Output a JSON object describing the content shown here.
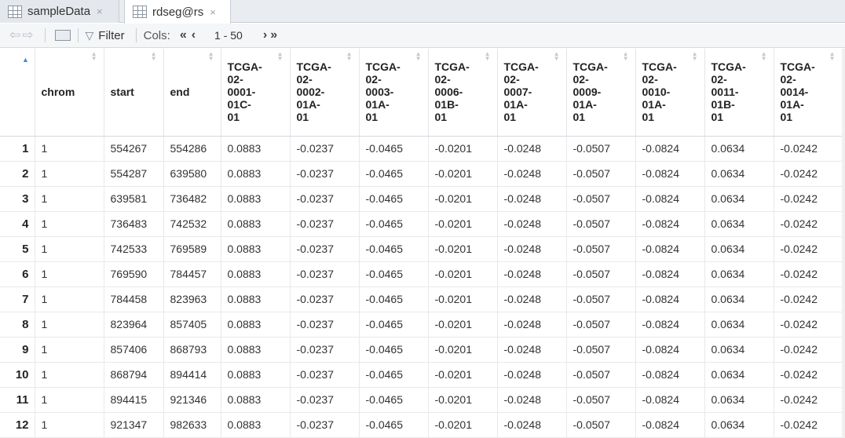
{
  "tabs": [
    {
      "label": "sampleData",
      "close": "×"
    },
    {
      "label": "rdseg@rs",
      "close": "×"
    }
  ],
  "toolbar": {
    "back_icon": "⇦",
    "forward_icon": "⇨",
    "filter_label": "Filter",
    "cols_label": "Cols:",
    "first_btn": "«",
    "prev_btn": "‹",
    "range": "1 - 50",
    "next_btn": "›",
    "last_btn": "»"
  },
  "table": {
    "columns": [
      "",
      "chrom",
      "start",
      "end",
      "TCGA-\n02-\n0001-\n01C-\n01",
      "TCGA-\n02-\n0002-\n01A-\n01",
      "TCGA-\n02-\n0003-\n01A-\n01",
      "TCGA-\n02-\n0006-\n01B-\n01",
      "TCGA-\n02-\n0007-\n01A-\n01",
      "TCGA-\n02-\n0009-\n01A-\n01",
      "TCGA-\n02-\n0010-\n01A-\n01",
      "TCGA-\n02-\n0011-\n01B-\n01",
      "TCGA-\n02-\n0014-\n01A-\n01"
    ],
    "rows": [
      [
        "1",
        "1",
        "554267",
        "554286",
        "0.0883",
        "-0.0237",
        "-0.0465",
        "-0.0201",
        "-0.0248",
        "-0.0507",
        "-0.0824",
        "0.0634",
        "-0.0242"
      ],
      [
        "2",
        "1",
        "554287",
        "639580",
        "0.0883",
        "-0.0237",
        "-0.0465",
        "-0.0201",
        "-0.0248",
        "-0.0507",
        "-0.0824",
        "0.0634",
        "-0.0242"
      ],
      [
        "3",
        "1",
        "639581",
        "736482",
        "0.0883",
        "-0.0237",
        "-0.0465",
        "-0.0201",
        "-0.0248",
        "-0.0507",
        "-0.0824",
        "0.0634",
        "-0.0242"
      ],
      [
        "4",
        "1",
        "736483",
        "742532",
        "0.0883",
        "-0.0237",
        "-0.0465",
        "-0.0201",
        "-0.0248",
        "-0.0507",
        "-0.0824",
        "0.0634",
        "-0.0242"
      ],
      [
        "5",
        "1",
        "742533",
        "769589",
        "0.0883",
        "-0.0237",
        "-0.0465",
        "-0.0201",
        "-0.0248",
        "-0.0507",
        "-0.0824",
        "0.0634",
        "-0.0242"
      ],
      [
        "6",
        "1",
        "769590",
        "784457",
        "0.0883",
        "-0.0237",
        "-0.0465",
        "-0.0201",
        "-0.0248",
        "-0.0507",
        "-0.0824",
        "0.0634",
        "-0.0242"
      ],
      [
        "7",
        "1",
        "784458",
        "823963",
        "0.0883",
        "-0.0237",
        "-0.0465",
        "-0.0201",
        "-0.0248",
        "-0.0507",
        "-0.0824",
        "0.0634",
        "-0.0242"
      ],
      [
        "8",
        "1",
        "823964",
        "857405",
        "0.0883",
        "-0.0237",
        "-0.0465",
        "-0.0201",
        "-0.0248",
        "-0.0507",
        "-0.0824",
        "0.0634",
        "-0.0242"
      ],
      [
        "9",
        "1",
        "857406",
        "868793",
        "0.0883",
        "-0.0237",
        "-0.0465",
        "-0.0201",
        "-0.0248",
        "-0.0507",
        "-0.0824",
        "0.0634",
        "-0.0242"
      ],
      [
        "10",
        "1",
        "868794",
        "894414",
        "0.0883",
        "-0.0237",
        "-0.0465",
        "-0.0201",
        "-0.0248",
        "-0.0507",
        "-0.0824",
        "0.0634",
        "-0.0242"
      ],
      [
        "11",
        "1",
        "894415",
        "921346",
        "0.0883",
        "-0.0237",
        "-0.0465",
        "-0.0201",
        "-0.0248",
        "-0.0507",
        "-0.0824",
        "0.0634",
        "-0.0242"
      ],
      [
        "12",
        "1",
        "921347",
        "982633",
        "0.0883",
        "-0.0237",
        "-0.0465",
        "-0.0201",
        "-0.0248",
        "-0.0507",
        "-0.0824",
        "0.0634",
        "-0.0242"
      ]
    ]
  }
}
